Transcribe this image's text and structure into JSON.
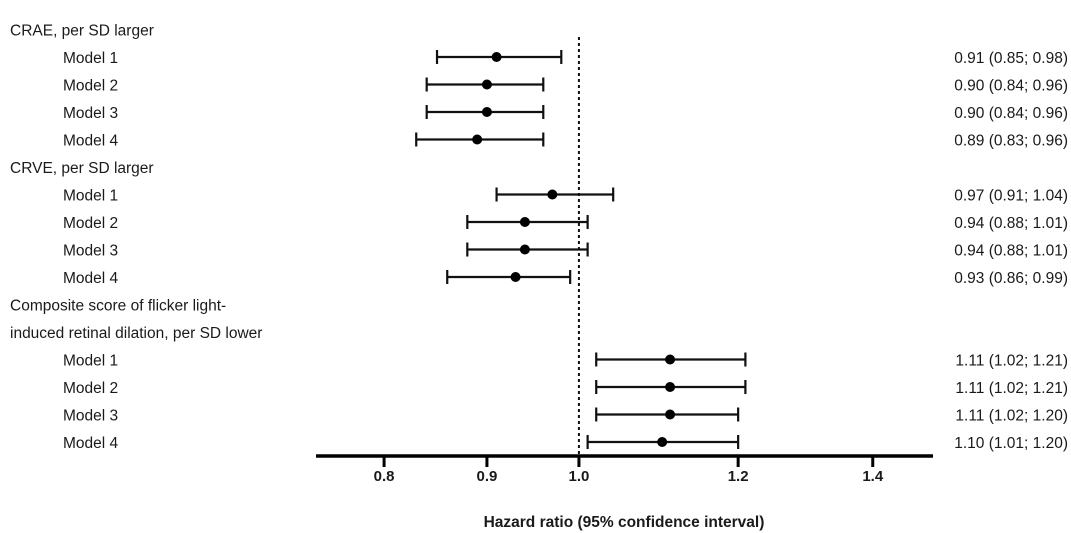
{
  "chart_data": {
    "type": "forest",
    "xlabel": "Hazard ratio (95% confidence interval)",
    "x_scale": "log",
    "xlim": [
      0.74,
      1.5
    ],
    "xticks": [
      0.8,
      0.9,
      1.0,
      1.2,
      1.4
    ],
    "xtick_labels": [
      "0.8",
      "0.9",
      "1.0",
      "1.2",
      "1.4"
    ],
    "reference_line": 1.0,
    "groups": [
      {
        "label_lines": [
          "CRAE, per SD larger"
        ],
        "rows": [
          {
            "label": "Model 1",
            "hr": 0.91,
            "lower": 0.85,
            "upper": 0.98,
            "text": "0.91 (0.85; 0.98)"
          },
          {
            "label": "Model 2",
            "hr": 0.9,
            "lower": 0.84,
            "upper": 0.96,
            "text": "0.90 (0.84; 0.96)"
          },
          {
            "label": "Model 3",
            "hr": 0.9,
            "lower": 0.84,
            "upper": 0.96,
            "text": "0.90 (0.84; 0.96)"
          },
          {
            "label": "Model 4",
            "hr": 0.89,
            "lower": 0.83,
            "upper": 0.96,
            "text": "0.89 (0.83; 0.96)"
          }
        ]
      },
      {
        "label_lines": [
          "CRVE, per SD larger"
        ],
        "rows": [
          {
            "label": "Model 1",
            "hr": 0.97,
            "lower": 0.91,
            "upper": 1.04,
            "text": "0.97 (0.91; 1.04)"
          },
          {
            "label": "Model 2",
            "hr": 0.94,
            "lower": 0.88,
            "upper": 1.01,
            "text": "0.94 (0.88; 1.01)"
          },
          {
            "label": "Model 3",
            "hr": 0.94,
            "lower": 0.88,
            "upper": 1.01,
            "text": "0.94 (0.88; 1.01)"
          },
          {
            "label": "Model 4",
            "hr": 0.93,
            "lower": 0.86,
            "upper": 0.99,
            "text": "0.93 (0.86; 0.99)"
          }
        ]
      },
      {
        "label_lines": [
          "Composite score of flicker light-",
          "induced retinal dilation, per SD lower"
        ],
        "rows": [
          {
            "label": "Model 1",
            "hr": 1.11,
            "lower": 1.02,
            "upper": 1.21,
            "text": "1.11 (1.02; 1.21)"
          },
          {
            "label": "Model 2",
            "hr": 1.11,
            "lower": 1.02,
            "upper": 1.21,
            "text": "1.11 (1.02; 1.21)"
          },
          {
            "label": "Model 3",
            "hr": 1.11,
            "lower": 1.02,
            "upper": 1.2,
            "text": "1.11 (1.02; 1.20)"
          },
          {
            "label": "Model 4",
            "hr": 1.1,
            "lower": 1.01,
            "upper": 1.2,
            "text": "1.10 (1.01; 1.20)"
          }
        ]
      }
    ]
  }
}
